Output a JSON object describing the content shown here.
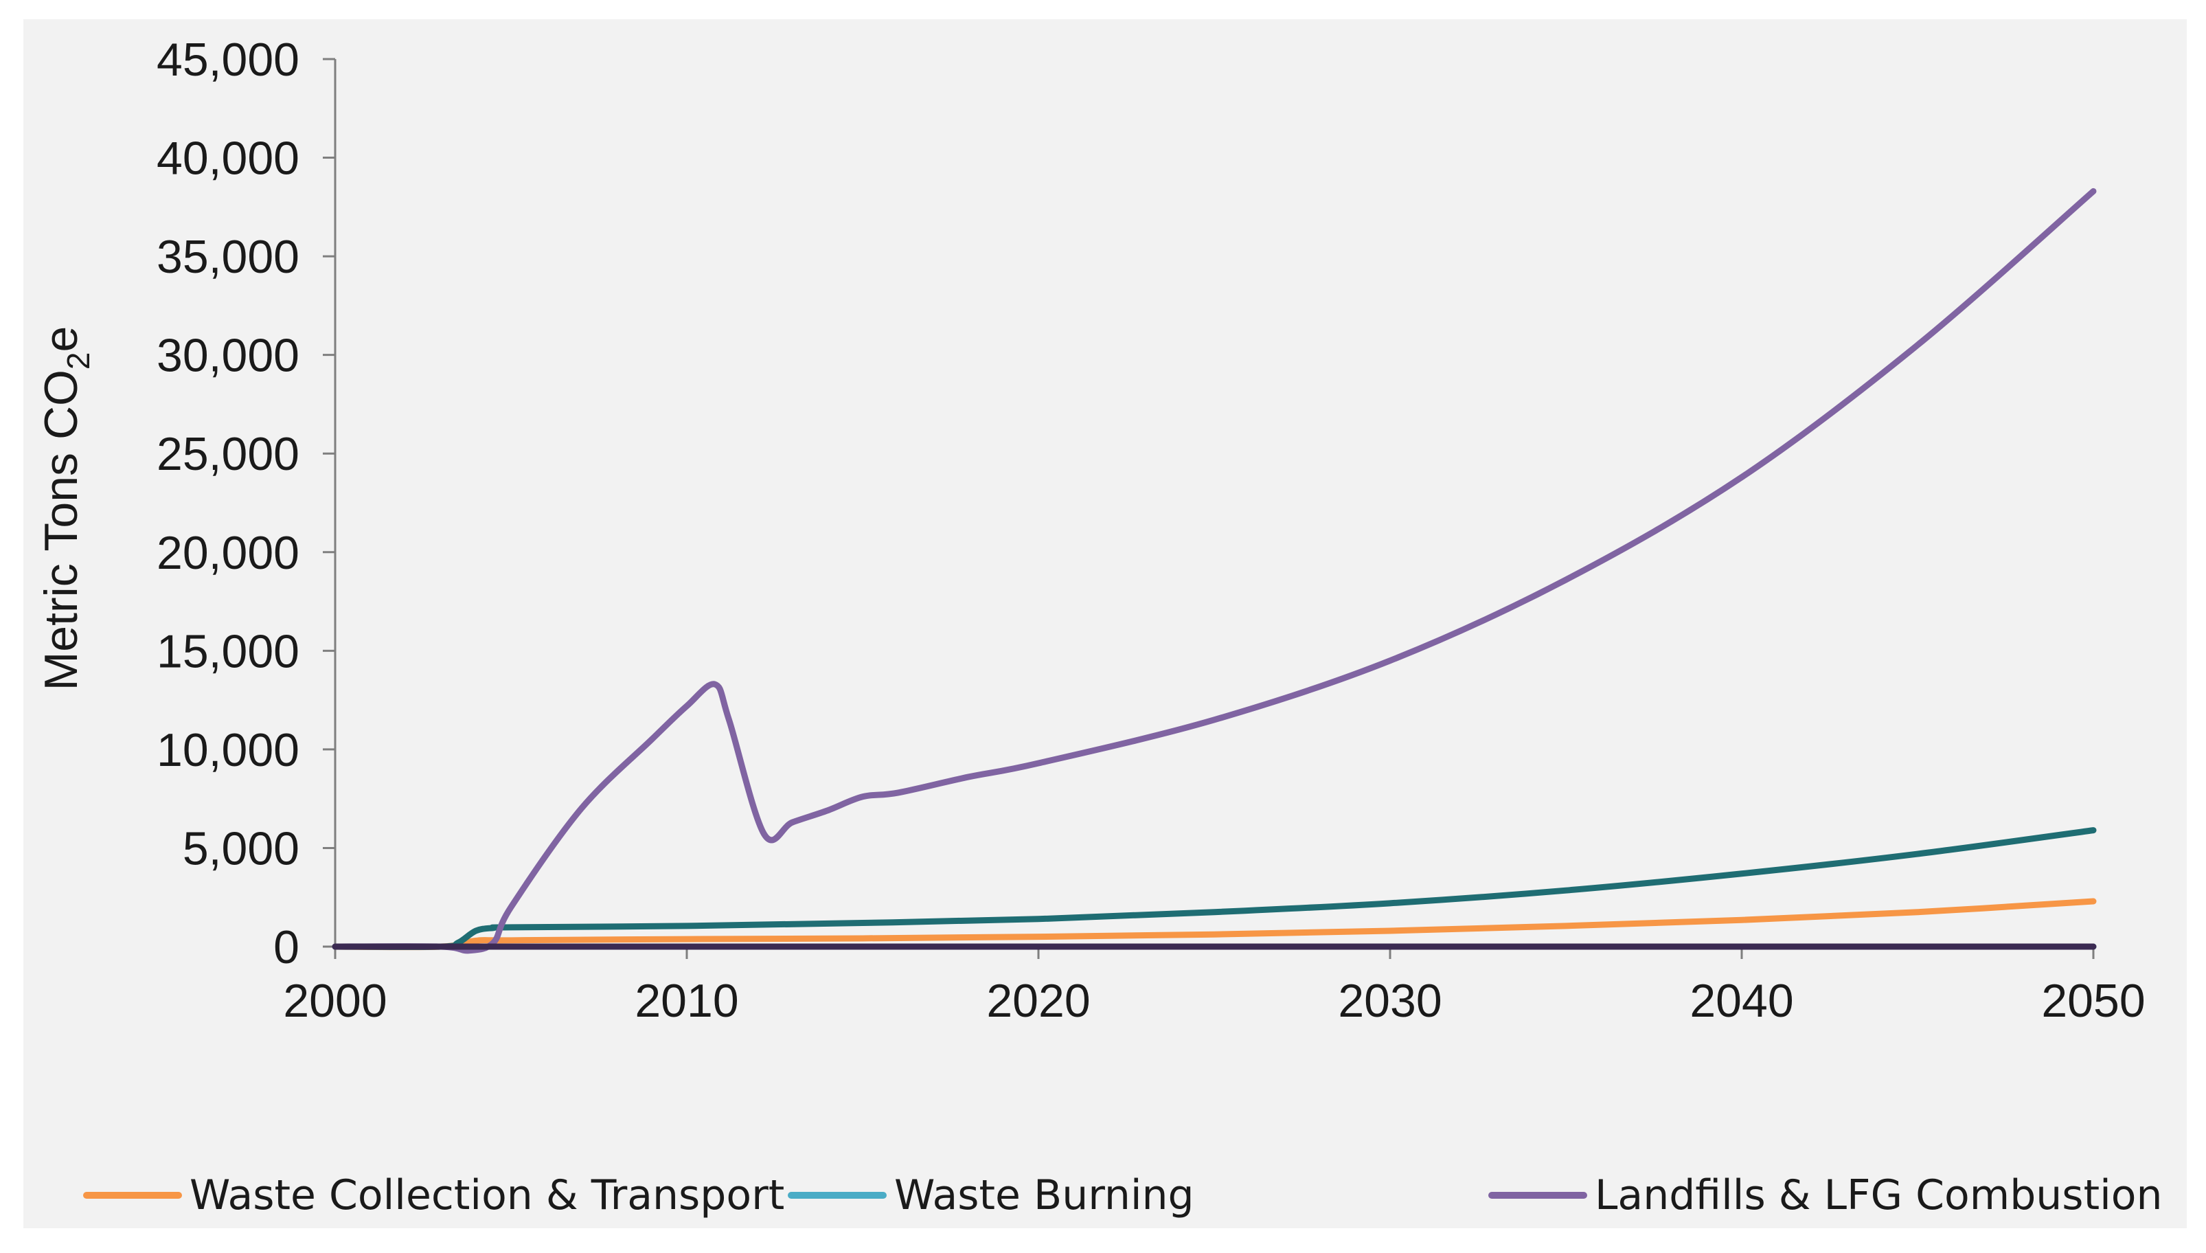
{
  "chart_data": {
    "type": "line",
    "title": "",
    "xlabel": "",
    "ylabel": "Metric Tons CO",
    "ylabel_subscript": "2",
    "ylabel_suffix": "e",
    "xlim": [
      2000,
      2050
    ],
    "ylim": [
      0,
      45000
    ],
    "x_ticks": [
      2000,
      2010,
      2020,
      2030,
      2040,
      2050
    ],
    "x_tick_labels": [
      "2000",
      "2010",
      "2020",
      "2030",
      "2040",
      "2050"
    ],
    "y_ticks": [
      0,
      5000,
      10000,
      15000,
      20000,
      25000,
      30000,
      35000,
      40000,
      45000
    ],
    "y_tick_labels": [
      "0",
      "5,000",
      "10,000",
      "15,000",
      "20,000",
      "25,000",
      "30,000",
      "35,000",
      "40,000",
      "45,000"
    ],
    "grid": false,
    "legend_position": "bottom",
    "series": [
      {
        "name": "Waste Collection & Transport",
        "color": "#f79646",
        "in_legend": true,
        "x": [
          2000,
          2003,
          2004,
          2005,
          2010,
          2015,
          2020,
          2025,
          2030,
          2035,
          2040,
          2045,
          2050
        ],
        "values": [
          0,
          0,
          300,
          320,
          380,
          420,
          500,
          620,
          800,
          1050,
          1350,
          1750,
          2300
        ]
      },
      {
        "name": "Waste Burning",
        "color": "#4bacc6",
        "in_legend": true,
        "x": [
          2000,
          2050
        ],
        "values": [
          0,
          0
        ]
      },
      {
        "name": "",
        "color": "#1f6d73",
        "in_legend": false,
        "x": [
          2000,
          2003,
          2003.5,
          2004,
          2004.5,
          2005,
          2010,
          2015,
          2020,
          2025,
          2030,
          2035,
          2040,
          2045,
          2050
        ],
        "values": [
          0,
          0,
          200,
          800,
          950,
          980,
          1050,
          1200,
          1400,
          1750,
          2200,
          2850,
          3700,
          4700,
          5900
        ]
      },
      {
        "name": "Landfills & LFG Combustion",
        "color": "#8064a2",
        "in_legend": true,
        "x": [
          2000,
          2003,
          2003.8,
          2004.5,
          2005,
          2007,
          2009,
          2010,
          2010.8,
          2011.2,
          2012.2,
          2013,
          2014,
          2015,
          2016,
          2018,
          2020,
          2025,
          2030,
          2035,
          2040,
          2045,
          2050
        ],
        "values": [
          0,
          0,
          -200,
          200,
          2000,
          7000,
          10500,
          12200,
          13300,
          11500,
          5700,
          6300,
          6900,
          7600,
          7800,
          8600,
          9300,
          11500,
          14500,
          18600,
          23800,
          30500,
          38300
        ]
      },
      {
        "name": "",
        "color": "#3b2a52",
        "in_legend": false,
        "x": [
          2000,
          2050
        ],
        "values": [
          0,
          0
        ]
      }
    ]
  }
}
